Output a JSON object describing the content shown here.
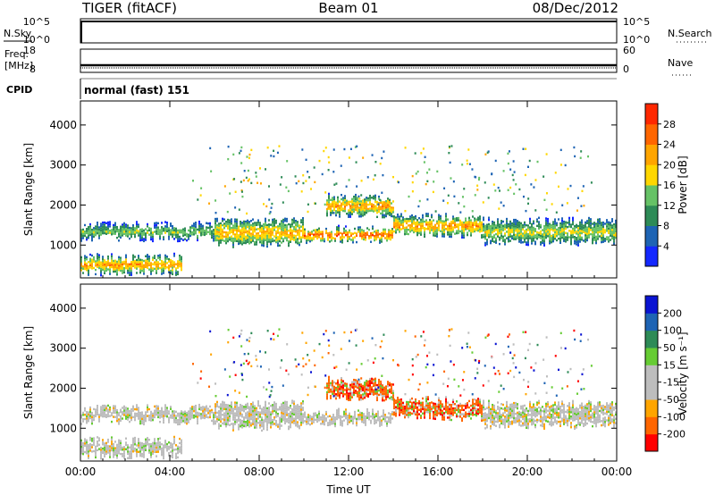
{
  "header": {
    "station": "TIGER (fitACF)",
    "beam": "Beam 01",
    "date": "08/Dec/2012"
  },
  "top_panels": {
    "nsky_label": "N.Sky",
    "nsearch_label": "N.Search",
    "count_ticks": [
      "10^5",
      "10^0"
    ],
    "freq_label_line1": "Freq.",
    "freq_label_line2": "[MHz]",
    "freq_ticks": [
      "18",
      "8"
    ],
    "nave_label": "Nave",
    "nave_ticks": [
      "60",
      "0"
    ],
    "cpid_label": "CPID",
    "cpid_value": "normal (fast) 151"
  },
  "colors": {
    "power_scale": [
      "#1428ff",
      "#1e64b4",
      "#2e8b57",
      "#66c266",
      "#ffd700",
      "#ffa500",
      "#ff6600",
      "#ff2800"
    ],
    "velocity_scale": [
      "#ff0000",
      "#ff6600",
      "#ffa500",
      "#bdbdbd",
      "#bdbdbd",
      "#66cc33",
      "#2e8b57",
      "#1e64b4",
      "#0a14d2"
    ],
    "ground_scatter": "#bdbdbd"
  },
  "chart_data": [
    {
      "type": "heatmap",
      "name": "power",
      "ylabel": "Slant Range [km]",
      "xlim": [
        "00:00",
        "24:00"
      ],
      "ylim": [
        180,
        4600
      ],
      "yticks": [
        "1000",
        "2000",
        "3000",
        "4000"
      ],
      "colorbar_label": "Power [dB]",
      "colorbar_ticks": [
        "4",
        "8",
        "12",
        "16",
        "20",
        "24",
        "28"
      ],
      "colorbar_range": [
        0,
        30
      ],
      "scatter_bands": [
        {
          "from_ut": 0,
          "to_ut": 6,
          "range_low": 1200,
          "range_high": 1500,
          "power": 14
        },
        {
          "from_ut": 0,
          "to_ut": 4.5,
          "range_low": 350,
          "range_high": 700,
          "power": 22
        },
        {
          "from_ut": 6,
          "to_ut": 10,
          "range_low": 1050,
          "range_high": 1600,
          "power": 20
        },
        {
          "from_ut": 10,
          "to_ut": 14,
          "range_low": 1150,
          "range_high": 1400,
          "power": 26
        },
        {
          "from_ut": 11,
          "to_ut": 14,
          "range_low": 1800,
          "range_high": 2200,
          "power": 22
        },
        {
          "from_ut": 14,
          "to_ut": 18,
          "range_low": 1300,
          "range_high": 1700,
          "power": 22
        },
        {
          "from_ut": 18,
          "to_ut": 24,
          "range_low": 1100,
          "range_high": 1600,
          "power": 16
        }
      ]
    },
    {
      "type": "heatmap",
      "name": "velocity",
      "xlabel": "Time UT",
      "ylabel": "Slant Range [km]",
      "xlim": [
        "00:00",
        "24:00"
      ],
      "ylim": [
        180,
        4600
      ],
      "xticks": [
        "00:00",
        "04:00",
        "08:00",
        "12:00",
        "16:00",
        "20:00",
        "00:00"
      ],
      "yticks": [
        "1000",
        "2000",
        "3000",
        "4000"
      ],
      "colorbar_label": "Velocity [m s⁻¹]",
      "colorbar_ticks": [
        "200",
        "100",
        "50",
        "15",
        "-15",
        "-50",
        "-100",
        "-200"
      ],
      "colorbar_range": [
        -250,
        250
      ]
    }
  ]
}
